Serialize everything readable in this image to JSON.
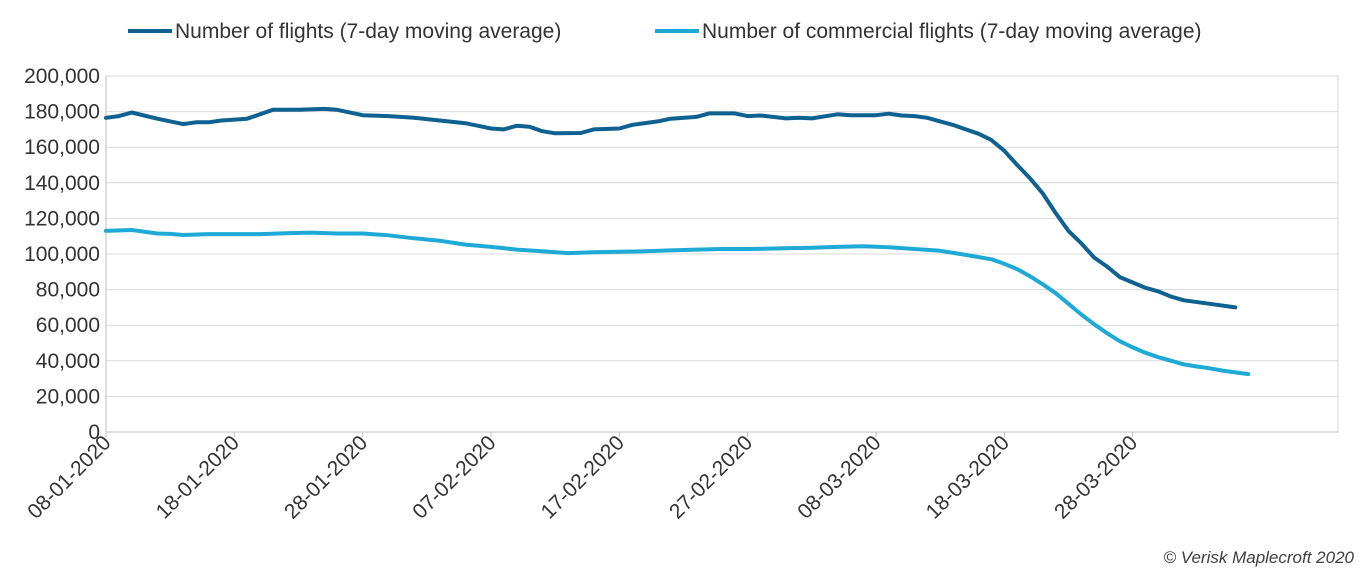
{
  "chart_data": {
    "type": "line",
    "title": "",
    "xlabel": "",
    "ylabel": "",
    "ylim": [
      0,
      200000
    ],
    "y_ticks": [
      "200,000",
      "180,000",
      "160,000",
      "140,000",
      "120,000",
      "100,000",
      "80,000",
      "60,000",
      "40,000",
      "20,000",
      "0"
    ],
    "x_ticks": [
      "08-01-2020",
      "18-01-2020",
      "28-01-2020",
      "07-02-2020",
      "17-02-2020",
      "27-02-2020",
      "08-03-2020",
      "18-03-2020",
      "28-03-2020"
    ],
    "x_start": "08-01-2020",
    "x_end": "13-04-2020",
    "grid": true,
    "legend_position": "top",
    "series": [
      {
        "name": "Number of flights (7-day moving average)",
        "color": "#0e6191",
        "points": [
          [
            "08-01-2020",
            176500
          ],
          [
            "09-01-2020",
            177500
          ],
          [
            "10-01-2020",
            179500
          ],
          [
            "12-01-2020",
            176000
          ],
          [
            "14-01-2020",
            173000
          ],
          [
            "15-01-2020",
            174000
          ],
          [
            "16-01-2020",
            174000
          ],
          [
            "17-01-2020",
            175000
          ],
          [
            "19-01-2020",
            176000
          ],
          [
            "21-01-2020",
            181000
          ],
          [
            "23-01-2020",
            181000
          ],
          [
            "25-01-2020",
            181500
          ],
          [
            "26-01-2020",
            181000
          ],
          [
            "28-01-2020",
            178000
          ],
          [
            "30-01-2020",
            177500
          ],
          [
            "01-02-2020",
            176500
          ],
          [
            "03-02-2020",
            175000
          ],
          [
            "05-02-2020",
            173500
          ],
          [
            "06-02-2020",
            172000
          ],
          [
            "07-02-2020",
            170500
          ],
          [
            "08-02-2020",
            170000
          ],
          [
            "09-02-2020",
            172000
          ],
          [
            "10-02-2020",
            171500
          ],
          [
            "11-02-2020",
            169000
          ],
          [
            "12-02-2020",
            167800
          ],
          [
            "14-02-2020",
            168000
          ],
          [
            "15-02-2020",
            170000
          ],
          [
            "17-02-2020",
            170500
          ],
          [
            "18-02-2020",
            172500
          ],
          [
            "20-02-2020",
            174500
          ],
          [
            "21-02-2020",
            176000
          ],
          [
            "23-02-2020",
            177000
          ],
          [
            "24-02-2020",
            179000
          ],
          [
            "26-02-2020",
            179000
          ],
          [
            "27-02-2020",
            177500
          ],
          [
            "28-02-2020",
            177800
          ],
          [
            "01-03-2020",
            176200
          ],
          [
            "02-03-2020",
            176500
          ],
          [
            "03-03-2020",
            176200
          ],
          [
            "05-03-2020",
            178500
          ],
          [
            "06-03-2020",
            178000
          ],
          [
            "08-03-2020",
            178000
          ],
          [
            "09-03-2020",
            178800
          ],
          [
            "10-03-2020",
            177800
          ],
          [
            "11-03-2020",
            177500
          ],
          [
            "12-03-2020",
            176500
          ],
          [
            "13-03-2020",
            174500
          ],
          [
            "14-03-2020",
            172500
          ],
          [
            "15-03-2020",
            170000
          ],
          [
            "16-03-2020",
            167500
          ],
          [
            "17-03-2020",
            164000
          ],
          [
            "18-03-2020",
            158000
          ],
          [
            "19-03-2020",
            150000
          ],
          [
            "20-03-2020",
            142500
          ],
          [
            "21-03-2020",
            134000
          ],
          [
            "22-03-2020",
            123000
          ],
          [
            "23-03-2020",
            113000
          ],
          [
            "24-03-2020",
            106000
          ],
          [
            "25-03-2020",
            98000
          ],
          [
            "26-03-2020",
            93000
          ],
          [
            "27-03-2020",
            87000
          ],
          [
            "28-03-2020",
            84000
          ],
          [
            "29-03-2020",
            81000
          ],
          [
            "30-03-2020",
            79000
          ],
          [
            "31-03-2020",
            76000
          ],
          [
            "01-04-2020",
            74000
          ],
          [
            "03-04-2020",
            72000
          ],
          [
            "05-04-2020",
            70000
          ]
        ]
      },
      {
        "name": "Number of commercial flights (7-day moving average)",
        "color": "#1fa9d6",
        "points": [
          [
            "08-01-2020",
            113000
          ],
          [
            "10-01-2020",
            113500
          ],
          [
            "12-01-2020",
            111500
          ],
          [
            "13-01-2020",
            111300
          ],
          [
            "14-01-2020",
            110700
          ],
          [
            "16-01-2020",
            111200
          ],
          [
            "18-01-2020",
            111200
          ],
          [
            "20-01-2020",
            111200
          ],
          [
            "22-01-2020",
            111700
          ],
          [
            "24-01-2020",
            112000
          ],
          [
            "26-01-2020",
            111500
          ],
          [
            "28-01-2020",
            111500
          ],
          [
            "30-01-2020",
            110500
          ],
          [
            "01-02-2020",
            108800
          ],
          [
            "03-02-2020",
            107500
          ],
          [
            "05-02-2020",
            105300
          ],
          [
            "07-02-2020",
            104000
          ],
          [
            "09-02-2020",
            102500
          ],
          [
            "11-02-2020",
            101500
          ],
          [
            "13-02-2020",
            100500
          ],
          [
            "15-02-2020",
            101000
          ],
          [
            "17-02-2020",
            101300
          ],
          [
            "19-02-2020",
            101500
          ],
          [
            "21-02-2020",
            102000
          ],
          [
            "23-02-2020",
            102500
          ],
          [
            "25-02-2020",
            102800
          ],
          [
            "27-02-2020",
            102800
          ],
          [
            "01-03-2020",
            103200
          ],
          [
            "03-03-2020",
            103500
          ],
          [
            "05-03-2020",
            104000
          ],
          [
            "07-03-2020",
            104300
          ],
          [
            "09-03-2020",
            103800
          ],
          [
            "11-03-2020",
            102800
          ],
          [
            "13-03-2020",
            101800
          ],
          [
            "15-03-2020",
            99500
          ],
          [
            "17-03-2020",
            97000
          ],
          [
            "18-03-2020",
            94500
          ],
          [
            "19-03-2020",
            91500
          ],
          [
            "20-03-2020",
            87500
          ],
          [
            "21-03-2020",
            83000
          ],
          [
            "22-03-2020",
            78000
          ],
          [
            "23-03-2020",
            72000
          ],
          [
            "24-03-2020",
            66000
          ],
          [
            "25-03-2020",
            60500
          ],
          [
            "26-03-2020",
            55500
          ],
          [
            "27-03-2020",
            51000
          ],
          [
            "28-03-2020",
            47500
          ],
          [
            "29-03-2020",
            44500
          ],
          [
            "30-03-2020",
            42000
          ],
          [
            "31-03-2020",
            40000
          ],
          [
            "01-04-2020",
            38000
          ],
          [
            "02-04-2020",
            36800
          ],
          [
            "03-04-2020",
            35800
          ],
          [
            "04-04-2020",
            34500
          ],
          [
            "05-04-2020",
            33500
          ],
          [
            "06-04-2020",
            32500
          ]
        ]
      }
    ],
    "source": "© Verisk Maplecroft 2020"
  }
}
